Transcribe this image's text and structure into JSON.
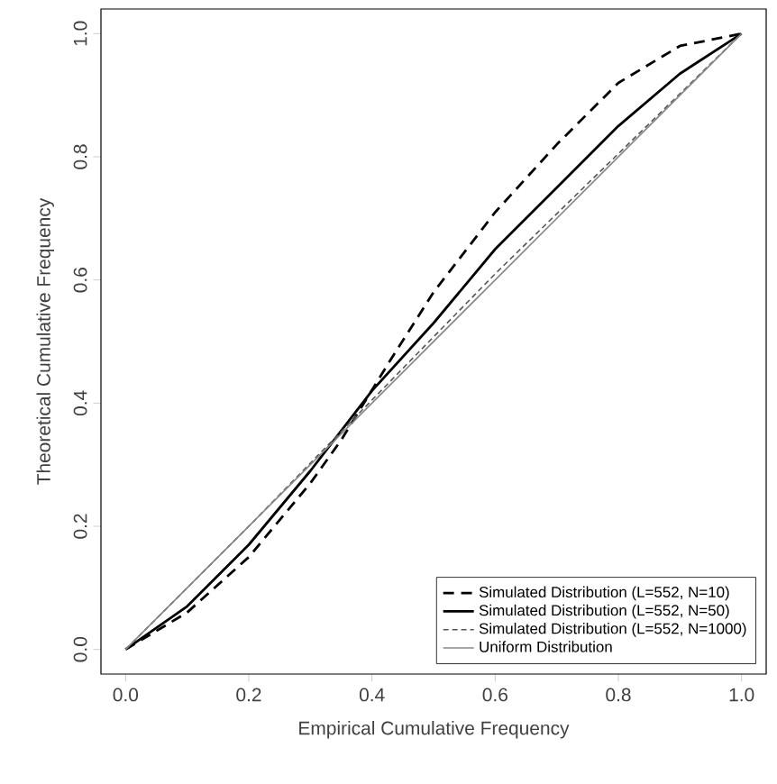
{
  "chart_data": {
    "type": "line",
    "xlabel": "Empirical Cumulative Frequency",
    "ylabel": "Theoretical Cumulative Frequency",
    "xlim": [
      -0.04,
      1.04
    ],
    "ylim": [
      -0.04,
      1.04
    ],
    "xticks": [
      {
        "value": 0,
        "label": "0.0"
      },
      {
        "value": 0.2,
        "label": "0.2"
      },
      {
        "value": 0.4,
        "label": "0.4"
      },
      {
        "value": 0.6,
        "label": "0.6"
      },
      {
        "value": 0.8,
        "label": "0.8"
      },
      {
        "value": 1,
        "label": "1.0"
      }
    ],
    "yticks": [
      {
        "value": 0,
        "label": "0.0"
      },
      {
        "value": 0.2,
        "label": "0.2"
      },
      {
        "value": 0.4,
        "label": "0.4"
      },
      {
        "value": 0.6,
        "label": "0.6"
      },
      {
        "value": 0.8,
        "label": "0.8"
      },
      {
        "value": 1,
        "label": "1.0"
      }
    ],
    "legend": "bottom right",
    "grid": false,
    "marker": "none",
    "series": [
      {
        "name": "Simulated Distribution (L=552, N=10)",
        "color": "#000000",
        "line_style": "dashed",
        "x": [
          0,
          0.1,
          0.2,
          0.3,
          0.35,
          0.43,
          0.5,
          0.6,
          0.7,
          0.8,
          0.9,
          1
        ],
        "values": [
          0,
          0.06,
          0.15,
          0.27,
          0.34,
          0.47,
          0.58,
          0.71,
          0.82,
          0.92,
          0.98,
          1
        ]
      },
      {
        "name": "Simulated Distribution (L=552, N=50)",
        "color": "#000000",
        "line_style": "solid",
        "x": [
          0,
          0.1,
          0.2,
          0.3,
          0.4,
          0.5,
          0.6,
          0.7,
          0.8,
          0.9,
          1
        ],
        "values": [
          0,
          0.07,
          0.17,
          0.29,
          0.42,
          0.53,
          0.65,
          0.75,
          0.85,
          0.935,
          1
        ]
      },
      {
        "name": "Simulated Distribution (L=552, N=1000)",
        "color": "#555555",
        "line_style": "dashed",
        "x": [
          0,
          0.2,
          0.4,
          0.6,
          0.8,
          1
        ],
        "values": [
          0,
          0.2,
          0.405,
          0.61,
          0.805,
          1
        ]
      },
      {
        "name": "Uniform Distribution",
        "color": "#888888",
        "line_style": "solid",
        "x": [
          0,
          1
        ],
        "values": [
          0,
          1
        ]
      }
    ]
  }
}
